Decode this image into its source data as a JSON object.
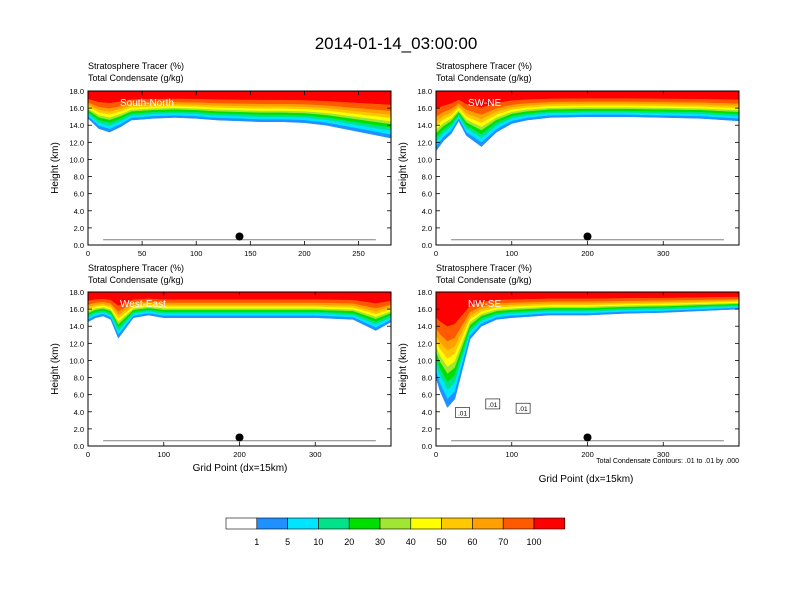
{
  "figure": {
    "title": "2014-01-14_03:00:00",
    "footnote": "Total Condensate Contours: .01 to .01 by .000",
    "xlabel": "Grid Point (dx=15km)",
    "ylabel": "Height (km)",
    "header_line1": "Stratosphere Tracer   (%)",
    "header_line2": "Total Condensate   (g/kg)"
  },
  "colorbar": {
    "colors": [
      "#ffffff",
      "#1e90ff",
      "#00e5ff",
      "#00e38b",
      "#00e000",
      "#a0e632",
      "#ffff00",
      "#ffc800",
      "#ffa000",
      "#ff5a00",
      "#ff0000"
    ],
    "labels": [
      "1",
      "5",
      "10",
      "20",
      "30",
      "40",
      "50",
      "60",
      "70",
      "100"
    ]
  },
  "chart_data": [
    {
      "type": "heatmap",
      "title": "South-North",
      "xlim": [
        0,
        280
      ],
      "xticks": [
        0,
        50,
        100,
        150,
        200,
        250
      ],
      "ylim": [
        0,
        18
      ],
      "yticks": [
        0.0,
        2.0,
        4.0,
        6.0,
        8.0,
        10.0,
        12.0,
        14.0,
        16.0,
        18.0
      ],
      "marker": {
        "x": 140,
        "y": 1.0
      },
      "tracer_band": {
        "x": [
          0,
          10,
          20,
          30,
          40,
          60,
          80,
          100,
          120,
          140,
          160,
          180,
          200,
          220,
          240,
          260,
          280
        ],
        "bottom": [
          14.8,
          13.6,
          13.2,
          13.8,
          14.6,
          14.8,
          14.9,
          14.8,
          14.6,
          14.5,
          14.4,
          14.4,
          14.3,
          14.0,
          13.5,
          13.0,
          12.5
        ],
        "top": [
          18,
          18,
          18,
          18,
          18,
          18,
          18,
          18,
          18,
          18,
          18,
          18,
          18,
          18,
          18,
          18,
          18
        ]
      }
    },
    {
      "type": "heatmap",
      "title": "SW-NE",
      "xlim": [
        0,
        400
      ],
      "xticks": [
        0,
        100,
        200,
        300
      ],
      "ylim": [
        0,
        18
      ],
      "yticks": [
        0.0,
        2.0,
        4.0,
        6.0,
        8.0,
        10.0,
        12.0,
        14.0,
        16.0,
        18.0
      ],
      "marker": {
        "x": 200,
        "y": 1.0
      },
      "tracer_band": {
        "x": [
          0,
          10,
          20,
          30,
          40,
          60,
          80,
          100,
          120,
          150,
          200,
          250,
          300,
          350,
          400
        ],
        "bottom": [
          11.0,
          12.2,
          13.0,
          14.5,
          12.8,
          11.5,
          13.2,
          14.2,
          14.6,
          14.9,
          15.0,
          15.0,
          14.9,
          14.8,
          14.5
        ],
        "top": [
          18,
          18,
          18,
          18,
          18,
          18,
          18,
          18,
          18,
          18,
          18,
          18,
          18,
          18,
          18
        ]
      }
    },
    {
      "type": "heatmap",
      "title": "West-East",
      "xlim": [
        0,
        400
      ],
      "xticks": [
        0,
        100,
        200,
        300
      ],
      "ylim": [
        0,
        18
      ],
      "yticks": [
        0.0,
        2.0,
        4.0,
        6.0,
        8.0,
        10.0,
        12.0,
        14.0,
        16.0,
        18.0
      ],
      "marker": {
        "x": 200,
        "y": 1.0
      },
      "tracer_band": {
        "x": [
          0,
          10,
          20,
          30,
          40,
          60,
          80,
          100,
          150,
          200,
          250,
          300,
          350,
          380,
          400
        ],
        "bottom": [
          14.5,
          15.0,
          15.2,
          14.8,
          12.6,
          15.0,
          15.3,
          15.0,
          15.0,
          15.0,
          15.0,
          15.0,
          14.8,
          13.5,
          14.5
        ],
        "top": [
          18,
          18,
          18,
          18,
          18,
          18,
          18,
          18,
          18,
          18,
          18,
          18,
          18,
          18,
          18
        ]
      }
    },
    {
      "type": "heatmap",
      "title": "NW-SE",
      "xlim": [
        0,
        400
      ],
      "xticks": [
        0,
        100,
        200,
        300
      ],
      "ylim": [
        0,
        18
      ],
      "yticks": [
        0.0,
        2.0,
        4.0,
        6.0,
        8.0,
        10.0,
        12.0,
        14.0,
        16.0,
        18.0
      ],
      "marker": {
        "x": 200,
        "y": 1.0
      },
      "contour_labels": [
        ".01",
        ".01",
        ".01"
      ],
      "tracer_band": {
        "x": [
          0,
          5,
          15,
          25,
          35,
          45,
          60,
          80,
          100,
          150,
          200,
          250,
          300,
          350,
          400
        ],
        "bottom": [
          8.0,
          6.5,
          4.5,
          5.5,
          9.0,
          12.5,
          14.0,
          14.8,
          15.0,
          15.3,
          15.3,
          15.5,
          15.6,
          15.8,
          16.0
        ],
        "top": [
          18,
          18,
          18,
          18,
          18,
          18,
          18,
          18,
          18,
          18,
          18,
          18,
          18,
          18,
          18
        ]
      }
    }
  ]
}
